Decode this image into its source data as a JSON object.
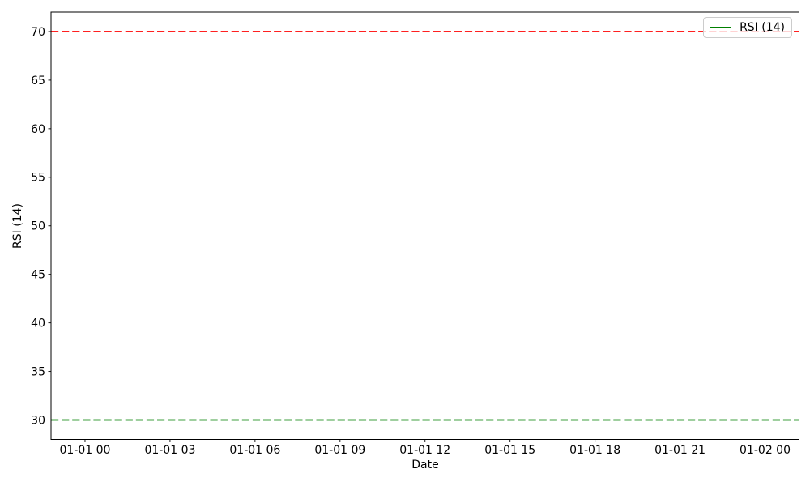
{
  "chart_data": {
    "type": "line",
    "title": "",
    "xlabel": "Date",
    "ylabel": "RSI (14)",
    "x_tick_labels": [
      "01-01 00",
      "01-01 03",
      "01-01 06",
      "01-01 09",
      "01-01 12",
      "01-01 15",
      "01-01 18",
      "01-01 21",
      "01-02 00"
    ],
    "y_ticks": [
      30,
      35,
      40,
      45,
      50,
      55,
      60,
      65,
      70
    ],
    "ylim": [
      28,
      72
    ],
    "grid": false,
    "series": [
      {
        "name": "RSI (14)",
        "color": "#008000",
        "line_style": "solid",
        "values": []
      }
    ],
    "reference_lines": [
      {
        "value": 70,
        "color": "#ff0000",
        "style": "dashed"
      },
      {
        "value": 30,
        "color": "#008000",
        "style": "dashed"
      }
    ],
    "legend": {
      "position": "upper right",
      "entries": [
        {
          "label": "RSI (14)",
          "color": "#008000",
          "line_style": "solid"
        }
      ]
    }
  }
}
